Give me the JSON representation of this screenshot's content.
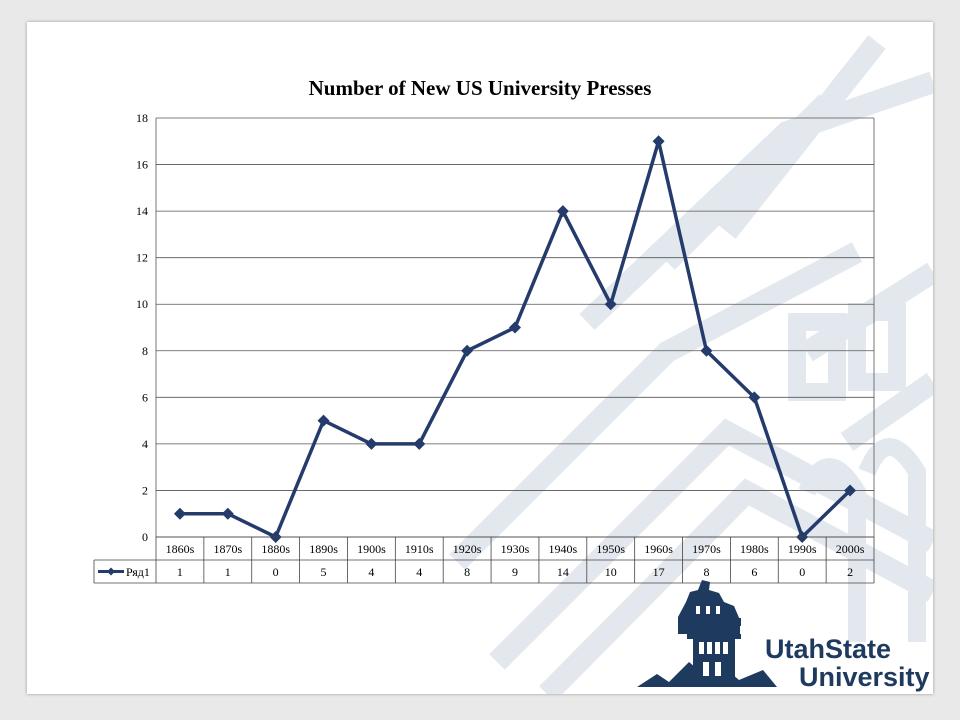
{
  "chart_data": {
    "type": "line",
    "title": "Number of New US University Presses",
    "categories": [
      "1860s",
      "1870s",
      "1880s",
      "1890s",
      "1900s",
      "1910s",
      "1920s",
      "1930s",
      "1940s",
      "1950s",
      "1960s",
      "1970s",
      "1980s",
      "1990s",
      "2000s"
    ],
    "series": [
      {
        "name": "Ряд1",
        "values": [
          1,
          1,
          0,
          5,
          4,
          4,
          8,
          9,
          14,
          10,
          17,
          8,
          6,
          0,
          2
        ]
      }
    ],
    "ylim": [
      0,
      18
    ],
    "yticks": [
      0,
      2,
      4,
      6,
      8,
      10,
      12,
      14,
      16,
      18
    ],
    "grid": true,
    "legend": "data-table",
    "xlabel": "",
    "ylabel": ""
  },
  "colors": {
    "series": "#243b6b",
    "grid": "#555555",
    "watermark": "#dfe4ec",
    "brand": "#1f3a5f"
  },
  "logo": {
    "name_line1": "UtahState",
    "name_line2": "University"
  }
}
